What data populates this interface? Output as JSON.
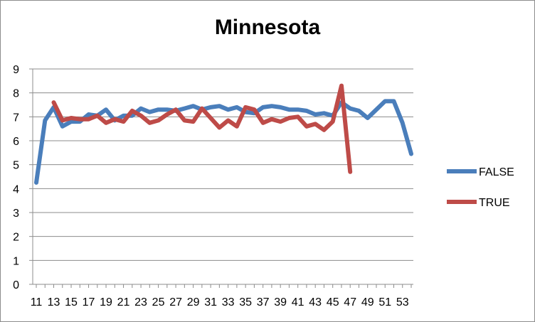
{
  "chart_data": {
    "type": "line",
    "title": "Minnesota",
    "xlabel": "",
    "ylabel": "",
    "ylim": [
      0,
      9
    ],
    "yticks": [
      "0",
      "1",
      "2",
      "3",
      "4",
      "5",
      "6",
      "7",
      "8",
      "9"
    ],
    "x": [
      11,
      12,
      13,
      14,
      15,
      16,
      17,
      18,
      19,
      20,
      21,
      22,
      23,
      24,
      25,
      26,
      27,
      28,
      29,
      30,
      31,
      32,
      33,
      34,
      35,
      36,
      37,
      38,
      39,
      40,
      41,
      42,
      43,
      44,
      45,
      46,
      47,
      48,
      49,
      50,
      51,
      52,
      53,
      54
    ],
    "xtick_labels": [
      "11",
      "13",
      "15",
      "17",
      "19",
      "21",
      "23",
      "25",
      "27",
      "29",
      "31",
      "33",
      "35",
      "37",
      "39",
      "41",
      "43",
      "45",
      "47",
      "49",
      "51",
      "53"
    ],
    "grid": "horizontal",
    "legend_position": "right",
    "series": [
      {
        "name": "FALSE",
        "color": "#4A7EBB",
        "values": [
          4.25,
          6.85,
          7.4,
          6.6,
          6.8,
          6.8,
          7.1,
          7.05,
          7.3,
          6.85,
          7.05,
          7.05,
          7.35,
          7.2,
          7.3,
          7.3,
          7.25,
          7.35,
          7.45,
          7.3,
          7.4,
          7.45,
          7.3,
          7.4,
          7.2,
          7.15,
          7.4,
          7.45,
          7.4,
          7.3,
          7.3,
          7.25,
          7.1,
          7.15,
          7.05,
          7.6,
          7.35,
          7.25,
          6.95,
          7.3,
          7.65,
          7.65,
          6.75,
          5.45
        ]
      },
      {
        "name": "TRUE",
        "color": "#BE4B48",
        "values": [
          null,
          null,
          7.6,
          6.85,
          6.95,
          6.9,
          6.9,
          7.05,
          6.75,
          6.9,
          6.8,
          7.25,
          7.05,
          6.75,
          6.85,
          7.1,
          7.3,
          6.85,
          6.8,
          7.35,
          6.95,
          6.55,
          6.85,
          6.6,
          7.4,
          7.3,
          6.75,
          6.9,
          6.8,
          6.95,
          7.0,
          6.6,
          6.7,
          6.45,
          6.8,
          8.3,
          4.7,
          null,
          null,
          null,
          null,
          null,
          null,
          null
        ]
      }
    ]
  }
}
